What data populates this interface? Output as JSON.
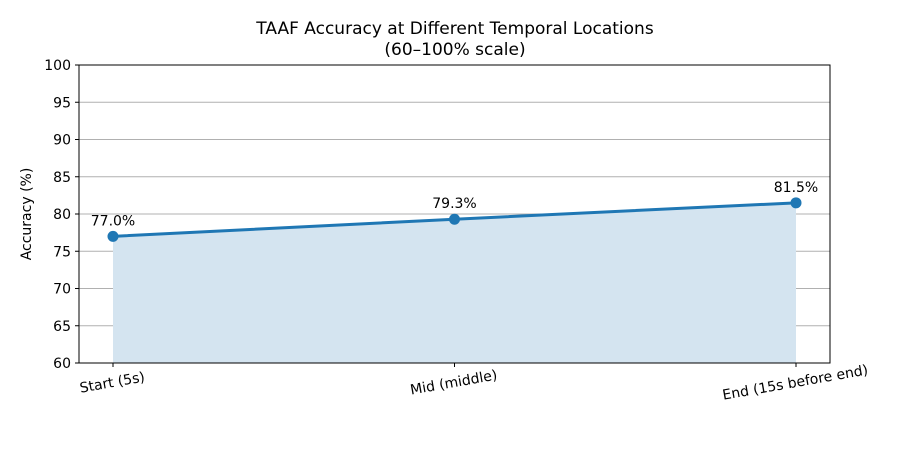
{
  "chart_data": {
    "type": "line",
    "title": "TAAF Accuracy at Different Temporal Locations",
    "subtitle": "(60–100% scale)",
    "xlabel": "",
    "ylabel": "Accuracy (%)",
    "categories": [
      "Start (5s)",
      "Mid (middle)",
      "End (15s before end)"
    ],
    "ylim": [
      60,
      100
    ],
    "yticks": [
      60,
      65,
      70,
      75,
      80,
      85,
      90,
      95,
      100
    ],
    "grid": "horizontal",
    "series": [
      {
        "values": [
          77.0,
          79.3,
          81.5
        ],
        "data_labels": [
          "77.0%",
          "79.3%",
          "81.5%"
        ],
        "color": "#1f77b4",
        "fill_color": "#d4e4f0"
      }
    ]
  }
}
